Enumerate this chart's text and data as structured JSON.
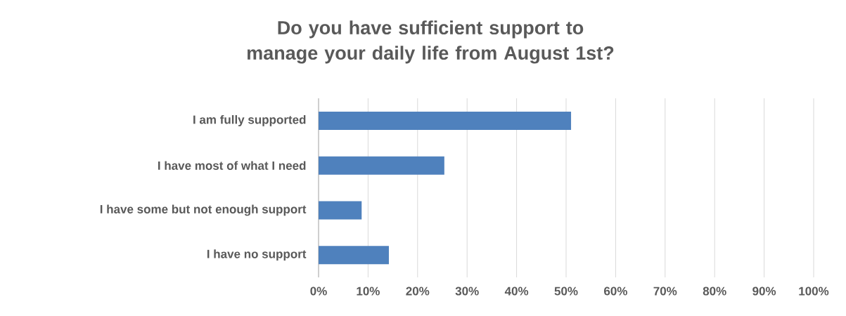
{
  "chart_data": {
    "type": "bar",
    "orientation": "horizontal",
    "title": "Do you have sufficient support to manage your daily life from August 1st?",
    "categories": [
      "I am fully supported",
      "I have most of what I need",
      "I have some but not enough support",
      "I have no support"
    ],
    "values": [
      51,
      25.4,
      8.7,
      14.2
    ],
    "color": "#4f81bd",
    "xlim": [
      0,
      100
    ],
    "xticks": [
      {
        "value": 0,
        "label": "0%"
      },
      {
        "value": 10,
        "label": "10%"
      },
      {
        "value": 20,
        "label": "20%"
      },
      {
        "value": 30,
        "label": "30%"
      },
      {
        "value": 40,
        "label": "40%"
      },
      {
        "value": 50,
        "label": "50%"
      },
      {
        "value": 60,
        "label": "60%"
      },
      {
        "value": 70,
        "label": "70%"
      },
      {
        "value": 80,
        "label": "80%"
      },
      {
        "value": 90,
        "label": "90%"
      },
      {
        "value": 100,
        "label": "100%"
      }
    ],
    "grid": "x"
  }
}
